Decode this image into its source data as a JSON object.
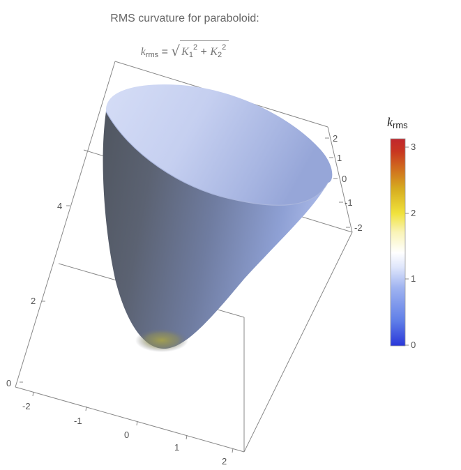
{
  "title": "RMS curvature for paraboloid:",
  "formula": {
    "lhs_symbol": "k",
    "lhs_sub": "rms",
    "equals": "=",
    "k1_symbol": "K",
    "k1_sub": "1",
    "k1_exp": "2",
    "plus": "+",
    "k2_symbol": "K",
    "k2_sub": "2",
    "k2_exp": "2"
  },
  "legend": {
    "title_symbol": "k",
    "title_sub": "rms",
    "ticks": [
      "3",
      "2",
      "1",
      "0"
    ],
    "colors": [
      "#2a37d9",
      "#5f7ee8",
      "#9fb3f0",
      "#dfe6fb",
      "#ffffff",
      "#f9f3b6",
      "#f0e23c",
      "#d6ab1f",
      "#d06a1e",
      "#c83621",
      "#c1272d"
    ]
  },
  "axes": {
    "x_ticks": [
      "-2",
      "-1",
      "0",
      "1",
      "2"
    ],
    "y_ticks": [
      "2",
      "1",
      "0",
      "-1",
      "-2"
    ],
    "z_ticks": [
      "0",
      "2",
      "4"
    ]
  },
  "surface_colors": {
    "rim_light": "#c7d1f2",
    "body_mid": "#7380a3",
    "body_dark": "#5a6174",
    "tip": "#8d8c48"
  }
}
